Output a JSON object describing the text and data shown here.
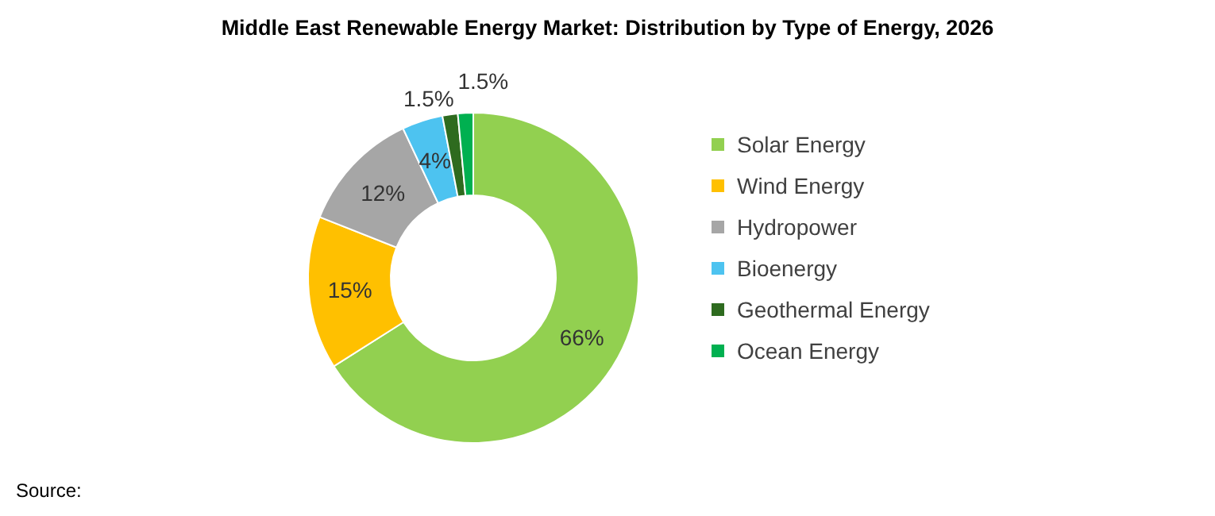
{
  "chart_data": {
    "type": "donut",
    "title": "Middle East Renewable Energy Market: Distribution by Type of Energy, 2026",
    "categories": [
      "Solar Energy",
      "Wind Energy",
      "Hydropower",
      "Bioenergy",
      "Geothermal Energy",
      "Ocean Energy"
    ],
    "values": [
      66,
      15,
      12,
      4,
      1.5,
      1.5
    ],
    "colors": [
      "#92d050",
      "#ffc000",
      "#a6a6a6",
      "#4dc3f0",
      "#2e6b1f",
      "#00b050"
    ],
    "value_labels": [
      "66%",
      "15%",
      "12%",
      "4%",
      "1.5%",
      "1.5%"
    ],
    "legend": "right",
    "annotations": [
      "Source:"
    ]
  }
}
